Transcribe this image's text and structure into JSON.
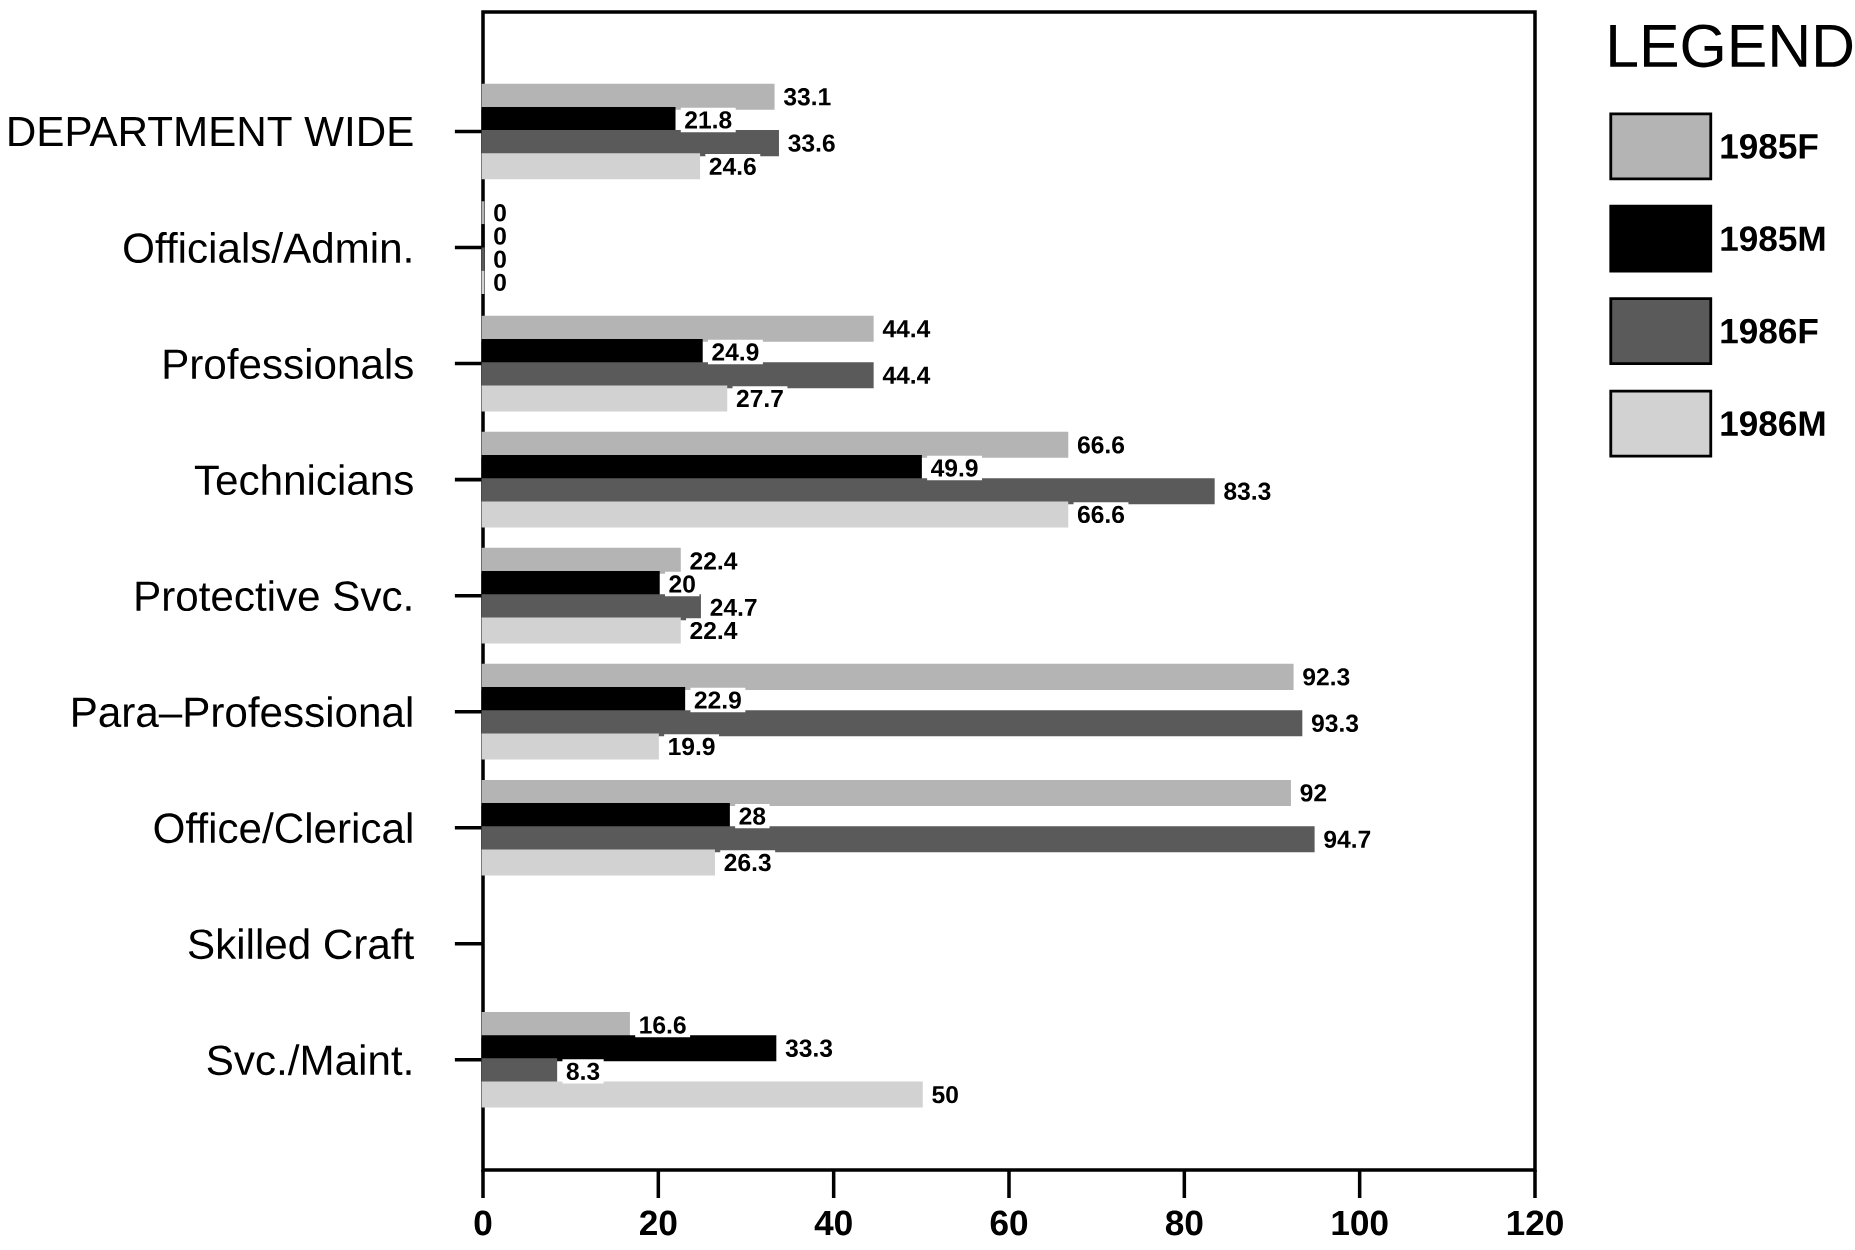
{
  "chart_data": {
    "type": "bar",
    "orientation": "horizontal",
    "legend_title": "LEGEND",
    "legend": "right",
    "data_labels": true,
    "grid": false,
    "categories": [
      "DEPARTMENT WIDE",
      "Officials/Admin.",
      "Professionals",
      "Technicians",
      "Protective Svc.",
      "Para–Professional",
      "Office/Clerical",
      "Skilled Craft",
      "Svc./Maint."
    ],
    "series": [
      {
        "name": "1985F",
        "color": "#b4b4b4",
        "values": [
          33.1,
          0,
          44.4,
          66.6,
          22.4,
          92.3,
          92,
          null,
          16.6
        ]
      },
      {
        "name": "1985M",
        "color": "#000000",
        "values": [
          21.8,
          0,
          24.9,
          49.9,
          20,
          22.9,
          28,
          null,
          33.3
        ]
      },
      {
        "name": "1986F",
        "color": "#5a5a5a",
        "values": [
          33.6,
          0,
          44.4,
          83.3,
          24.7,
          93.3,
          94.7,
          null,
          8.3
        ]
      },
      {
        "name": "1986M",
        "color": "#d2d2d2",
        "values": [
          24.6,
          0,
          27.7,
          66.6,
          22.4,
          19.9,
          26.3,
          null,
          50
        ]
      }
    ],
    "xlim": [
      0,
      120
    ],
    "xticks": [
      0,
      20,
      40,
      60,
      80,
      100,
      120
    ]
  }
}
